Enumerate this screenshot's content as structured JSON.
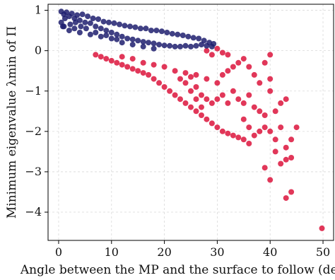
{
  "chart_data": {
    "type": "scatter",
    "xlabel": "Angle between the MP and the surface to follow (deg)",
    "ylabel": "Minimum eigenvalue λmin of Π",
    "xlim": [
      -2,
      52
    ],
    "ylim": [
      -4.7,
      1.15
    ],
    "xticks": [
      "0",
      "10",
      "20",
      "30",
      "40",
      "50"
    ],
    "yticks": [
      "1",
      "0",
      "−1",
      "−2",
      "−3",
      "−4"
    ],
    "grid": true,
    "colors": {
      "positive": "#1f1f6e",
      "negative": "#dc143c"
    },
    "series": [
      {
        "values": [
          [
            0.5,
            0.97
          ],
          [
            1,
            0.9
          ],
          [
            1.5,
            0.95
          ],
          [
            2,
            0.85
          ],
          [
            2.5,
            0.92
          ],
          [
            3,
            0.8
          ],
          [
            3.5,
            0.88
          ],
          [
            4,
            0.75
          ],
          [
            4.5,
            0.9
          ],
          [
            5,
            0.7
          ],
          [
            5.5,
            0.85
          ],
          [
            6,
            0.68
          ],
          [
            6.5,
            0.8
          ],
          [
            7,
            0.6
          ],
          [
            7.5,
            0.78
          ],
          [
            8,
            0.55
          ],
          [
            8.5,
            0.72
          ],
          [
            9,
            0.5
          ],
          [
            9.5,
            0.7
          ],
          [
            10,
            0.45
          ],
          [
            10.5,
            0.68
          ],
          [
            11,
            0.4
          ],
          [
            11.5,
            0.65
          ],
          [
            12,
            0.35
          ],
          [
            12.5,
            0.62
          ],
          [
            13,
            0.3
          ],
          [
            13.5,
            0.6
          ],
          [
            14,
            0.28
          ],
          [
            14.5,
            0.58
          ],
          [
            15,
            0.25
          ],
          [
            15.5,
            0.55
          ],
          [
            16,
            0.22
          ],
          [
            16.5,
            0.55
          ],
          [
            17,
            0.2
          ],
          [
            17.5,
            0.5
          ],
          [
            18,
            0.18
          ],
          [
            18.5,
            0.5
          ],
          [
            19,
            0.15
          ],
          [
            19.5,
            0.48
          ],
          [
            20,
            0.13
          ],
          [
            20.5,
            0.45
          ],
          [
            21,
            0.12
          ],
          [
            21.5,
            0.42
          ],
          [
            22,
            0.1
          ],
          [
            22.5,
            0.4
          ],
          [
            23,
            0.1
          ],
          [
            23.5,
            0.38
          ],
          [
            24,
            0.12
          ],
          [
            24.5,
            0.35
          ],
          [
            25,
            0.1
          ],
          [
            25.5,
            0.32
          ],
          [
            26,
            0.12
          ],
          [
            26.5,
            0.3
          ],
          [
            27,
            0.15
          ],
          [
            27.5,
            0.25
          ],
          [
            28,
            0.12
          ],
          [
            28.5,
            0.2
          ],
          [
            29,
            0.1
          ],
          [
            29.3,
            0.17
          ],
          [
            1,
            0.6
          ],
          [
            2,
            0.5
          ],
          [
            3,
            0.55
          ],
          [
            4,
            0.45
          ],
          [
            6,
            0.4
          ],
          [
            8,
            0.35
          ],
          [
            10,
            0.3
          ],
          [
            12,
            0.2
          ],
          [
            14,
            0.15
          ],
          [
            16,
            0.1
          ],
          [
            18,
            0.05
          ],
          [
            0.5,
            0.7
          ],
          [
            0.8,
            0.6
          ],
          [
            1.2,
            0.8
          ],
          [
            2.2,
            0.65
          ],
          [
            3.2,
            0.7
          ],
          [
            4.2,
            0.6
          ],
          [
            5.2,
            0.55
          ],
          [
            7,
            0.45
          ],
          [
            9,
            0.38
          ],
          [
            11,
            0.28
          ]
        ]
      },
      {
        "values": [
          [
            7,
            -0.1
          ],
          [
            8,
            -0.15
          ],
          [
            9,
            -0.2
          ],
          [
            10,
            -0.25
          ],
          [
            11,
            -0.3
          ],
          [
            12,
            -0.35
          ],
          [
            13,
            -0.4
          ],
          [
            14,
            -0.45
          ],
          [
            15,
            -0.5
          ],
          [
            16,
            -0.55
          ],
          [
            17,
            -0.6
          ],
          [
            18,
            -0.7
          ],
          [
            19,
            -0.8
          ],
          [
            20,
            -0.9
          ],
          [
            21,
            -1
          ],
          [
            22,
            -1.1
          ],
          [
            23,
            -1.2
          ],
          [
            24,
            -1.3
          ],
          [
            25,
            -1.4
          ],
          [
            26,
            -1.5
          ],
          [
            27,
            -1.6
          ],
          [
            28,
            -1.7
          ],
          [
            29,
            -1.8
          ],
          [
            30,
            -1.9
          ],
          [
            31,
            -2
          ],
          [
            32,
            -2.05
          ],
          [
            33,
            -2.1
          ],
          [
            34,
            -2.15
          ],
          [
            35,
            -2.2
          ],
          [
            36,
            -2.3
          ],
          [
            12,
            -0.15
          ],
          [
            14,
            -0.2
          ],
          [
            16,
            -0.3
          ],
          [
            18,
            -0.35
          ],
          [
            20,
            -0.4
          ],
          [
            22,
            -0.5
          ],
          [
            24,
            -0.55
          ],
          [
            26,
            -0.6
          ],
          [
            28,
            -0.7
          ],
          [
            30,
            -0.8
          ],
          [
            31,
            -0.6
          ],
          [
            32,
            -0.5
          ],
          [
            33,
            -0.4
          ],
          [
            34,
            -0.3
          ],
          [
            35,
            -0.2
          ],
          [
            36,
            -0.4
          ],
          [
            37,
            -0.6
          ],
          [
            38,
            -0.8
          ],
          [
            39,
            -0.3
          ],
          [
            40,
            -0.7
          ],
          [
            30,
            -1.2
          ],
          [
            31,
            -1.1
          ],
          [
            32,
            -1.3
          ],
          [
            33,
            -1.0
          ],
          [
            34,
            -1.2
          ],
          [
            35,
            -1.3
          ],
          [
            36,
            -1.1
          ],
          [
            37,
            -1.4
          ],
          [
            38,
            -1.5
          ],
          [
            39,
            -1.6
          ],
          [
            35,
            -1.7
          ],
          [
            36,
            -1.9
          ],
          [
            37,
            -2.1
          ],
          [
            38,
            -2.0
          ],
          [
            39,
            -1.9
          ],
          [
            40,
            -2.0
          ],
          [
            41,
            -2.2
          ],
          [
            42,
            -1.9
          ],
          [
            43,
            -2.4
          ],
          [
            44,
            -2.2
          ],
          [
            30,
            0.05
          ],
          [
            31,
            -0.05
          ],
          [
            32,
            -0.1
          ],
          [
            28,
            0.0
          ],
          [
            29,
            -0.1
          ],
          [
            40,
            -1.0
          ],
          [
            41,
            -1.5
          ],
          [
            42,
            -1.3
          ],
          [
            43,
            -1.2
          ],
          [
            45,
            -1.9
          ],
          [
            41,
            -2.5
          ],
          [
            42,
            -2.8
          ],
          [
            43,
            -2.7
          ],
          [
            44,
            -2.65
          ],
          [
            40,
            -3.2
          ],
          [
            39,
            -2.9
          ],
          [
            43,
            -3.65
          ],
          [
            44,
            -3.5
          ],
          [
            49.8,
            -4.4
          ],
          [
            40,
            -0.1
          ],
          [
            25,
            -1.0
          ],
          [
            26,
            -0.9
          ],
          [
            27,
            -1.1
          ],
          [
            28,
            -1.2
          ],
          [
            29,
            -1.3
          ],
          [
            23,
            -0.7
          ],
          [
            24,
            -0.8
          ],
          [
            25,
            -0.65
          ],
          [
            26,
            -1.2
          ],
          [
            27,
            -1.4
          ]
        ]
      }
    ]
  }
}
